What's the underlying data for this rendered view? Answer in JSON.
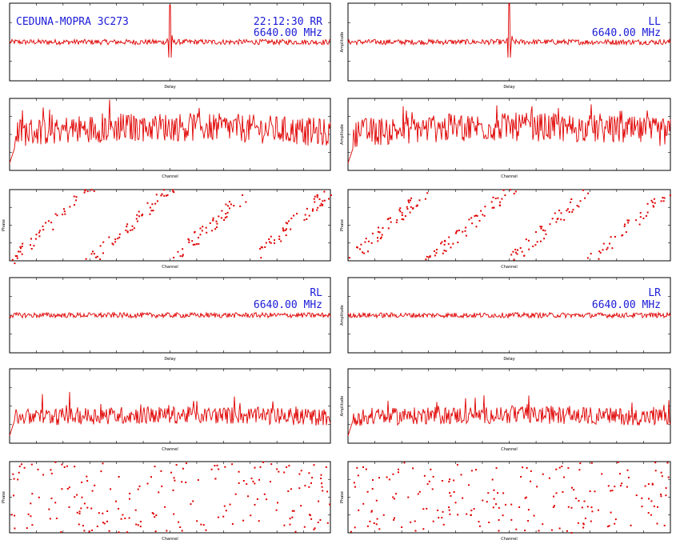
{
  "header": {
    "source": "CEDUNA-MOPRA 3C273",
    "time_pol": "22:12:30  RR",
    "freq": "6640.00 MHz"
  },
  "colors": {
    "trace": "#e00000",
    "label": "#1a1ad8",
    "frame": "#000000"
  },
  "panels_top_right": {
    "pol": "LL",
    "freq": "6640.00 MHz"
  },
  "panels_bottom_left": {
    "pol": "RL",
    "freq": "6640.00 MHz"
  },
  "panels_bottom_right": {
    "pol": "LR",
    "freq": "6640.00 MHz"
  },
  "chart_data": [
    {
      "id": "RR-delay",
      "type": "line",
      "xlabel": "Delay",
      "ylabel": "",
      "ylim": [
        0,
        8
      ],
      "baseline": 4,
      "peak": {
        "position": 0.5,
        "value": 7.8
      }
    },
    {
      "id": "LL-delay",
      "type": "line",
      "xlabel": "Delay",
      "ylabel": "Amplitude",
      "ylim": [
        0,
        8
      ],
      "baseline": 4,
      "peak": {
        "position": 0.5,
        "value": 8.5
      }
    },
    {
      "id": "RR-amp",
      "type": "line",
      "xlabel": "Channel",
      "ylabel": "",
      "ylim": [
        0,
        3
      ],
      "baseline": 1.5
    },
    {
      "id": "LL-amp",
      "type": "line",
      "xlabel": "Channel",
      "ylabel": "Amplitude",
      "ylim": [
        0,
        3
      ],
      "baseline": 1.5
    },
    {
      "id": "RR-phase",
      "type": "scatter",
      "xlabel": "Channel",
      "ylabel": "Phase",
      "ylim": [
        -180,
        180
      ],
      "wraps": 4
    },
    {
      "id": "LL-phase",
      "type": "scatter",
      "xlabel": "Channel",
      "ylabel": "Phase",
      "ylim": [
        -180,
        180
      ],
      "wraps": 4
    },
    {
      "id": "RL-delay",
      "type": "line",
      "xlabel": "Delay",
      "ylabel": "",
      "ylim": [
        0,
        8
      ],
      "baseline": 4
    },
    {
      "id": "LR-delay",
      "type": "line",
      "xlabel": "Delay",
      "ylabel": "Amplitude",
      "ylim": [
        0,
        8
      ],
      "baseline": 4
    },
    {
      "id": "RL-amp",
      "type": "line",
      "xlabel": "Channel",
      "ylabel": "",
      "ylim": [
        0,
        3
      ],
      "baseline": 1.0
    },
    {
      "id": "LR-amp",
      "type": "line",
      "xlabel": "Channel",
      "ylabel": "Amplitude",
      "ylim": [
        0,
        3
      ],
      "baseline": 1.0
    },
    {
      "id": "RL-phase",
      "type": "scatter",
      "xlabel": "Channel",
      "ylabel": "Phase",
      "ylim": [
        -180,
        180
      ],
      "wraps": 0
    },
    {
      "id": "LR-phase",
      "type": "scatter",
      "xlabel": "Channel",
      "ylabel": "Phase",
      "ylim": [
        -180,
        180
      ],
      "wraps": 0
    }
  ]
}
